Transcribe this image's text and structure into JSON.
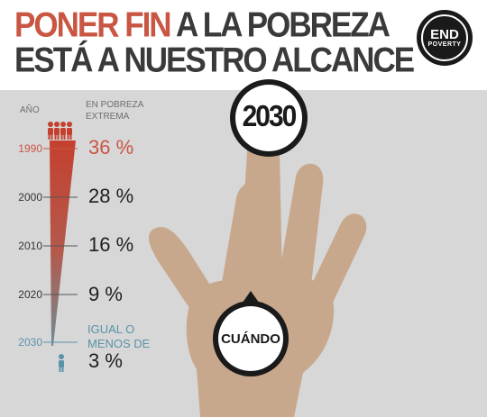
{
  "header": {
    "title_line1_part1": "PONER FIN",
    "title_line1_part2": "A LA POBREZA",
    "title_line2": "ESTÁ A NUESTRO ALCANCE"
  },
  "badge": {
    "line1": "END",
    "line2": "POVERTY"
  },
  "target": {
    "year_label": "2030",
    "when_label": "CUÁNDO"
  },
  "colors": {
    "accent": "#c95643",
    "teal": "#5a93a8",
    "skin": "#c8a88c",
    "panel": "#d7d7d7"
  },
  "chart_data": {
    "type": "table",
    "column_headers": {
      "year": "AÑO",
      "poverty_line1": "EN POBREZA",
      "poverty_line2": "EXTREMA"
    },
    "rows": [
      {
        "year": "1990",
        "label": "36 %",
        "value": 36
      },
      {
        "year": "2000",
        "label": "28 %",
        "value": 28
      },
      {
        "year": "2010",
        "label": "16 %",
        "value": 16
      },
      {
        "year": "2020",
        "label": "9 %",
        "value": 9
      },
      {
        "year": "2030",
        "label": "3 %",
        "value": 3
      }
    ],
    "last_row_note_line1": "IGUAL O",
    "last_row_note_line2": "MENOS DE"
  }
}
